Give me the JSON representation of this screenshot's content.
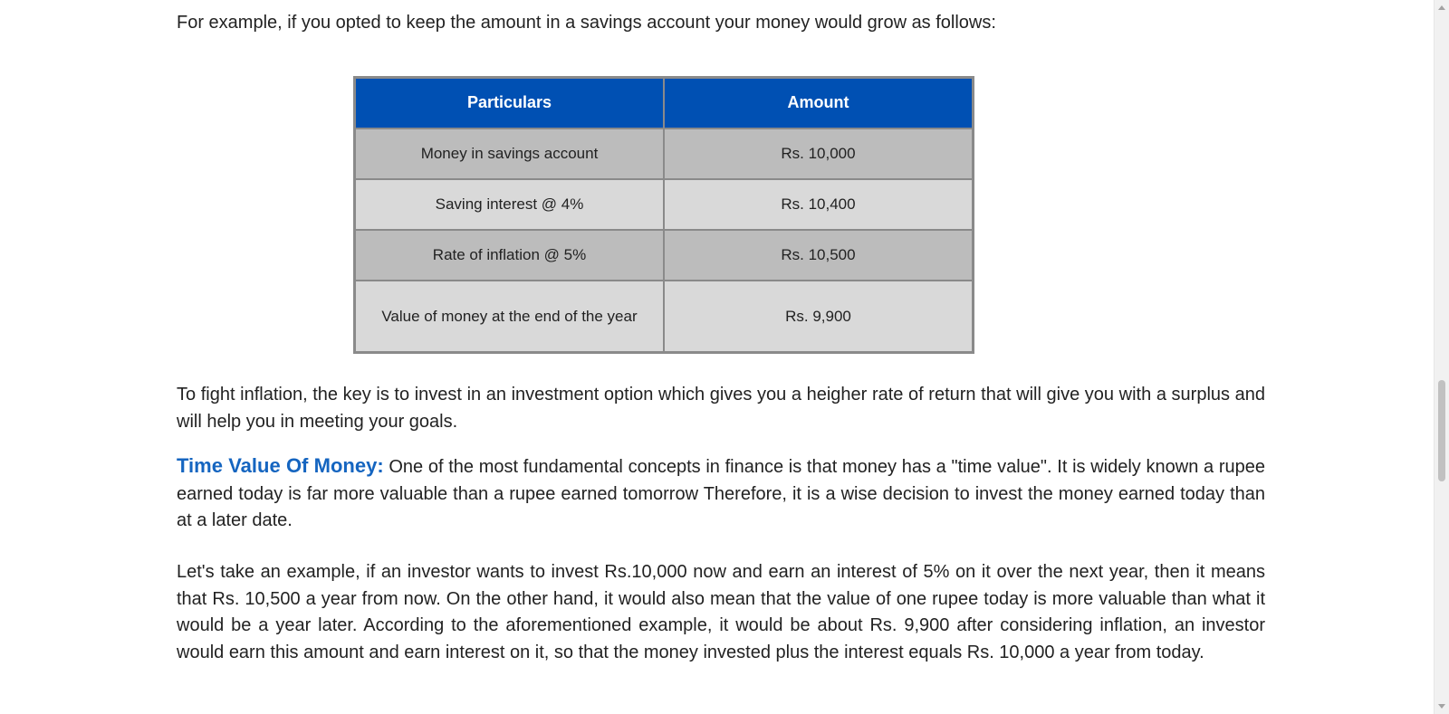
{
  "intro_text": "For example, if you opted to keep the amount in a savings account your money would grow as follows:",
  "table": {
    "headers": [
      "Particulars",
      "Amount"
    ],
    "rows": [
      {
        "particular": "Money in savings account",
        "amount": "Rs. 10,000"
      },
      {
        "particular": "Saving interest @ 4%",
        "amount": "Rs. 10,400"
      },
      {
        "particular": "Rate of inflation @ 5%",
        "amount": "Rs. 10,500"
      },
      {
        "particular": "Value of money at the end of the year",
        "amount": "Rs. 9,900"
      }
    ],
    "colors": {
      "header_bg": "#0050b3",
      "row_dark": "#bcbcbc",
      "row_light": "#d9d9d9",
      "border": "#8a8a8a"
    }
  },
  "paragraphs": {
    "inflation": "To fight inflation, the key is to invest in an investment option which gives you a heigher rate of return that will give you with a surplus and will help you in meeting your goals.",
    "tvm_label": "Time Value Of Money:",
    "tvm_body": " One of the most fundamental concepts in finance is that money has a \"time value\". It is widely known a rupee earned today is far more valuable than a rupee earned tomorrow Therefore, it is a wise decision to invest the money earned today than at a later date.",
    "example": "Let's take an example, if an investor wants to invest Rs.10,000 now and earn an interest of 5% on it over the next year, then it means that Rs. 10,500 a year from now. On the other hand, it would also mean that the value of one rupee today is more valuable than what it would be a year later. According to the aforementioned example, it would be about Rs. 9,900 after considering inflation, an investor would earn this amount and earn interest on it, so that the money invested plus the interest equals Rs. 10,000 a year from today."
  },
  "accent_color": "#1565c0"
}
